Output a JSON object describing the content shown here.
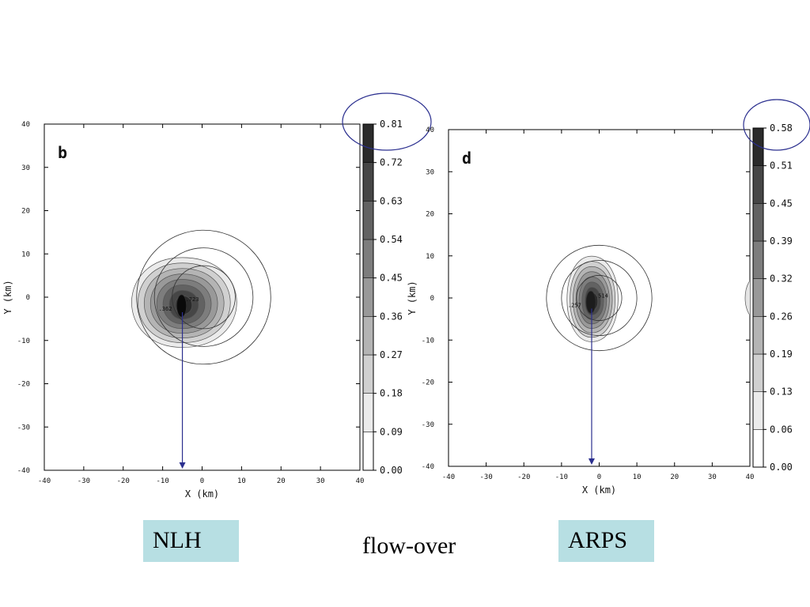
{
  "chart_data": [
    {
      "type": "contour",
      "panel_label": "b",
      "model_label": "NLH",
      "xlabel": "X (km)",
      "ylabel": "Y (km)",
      "xlim": [
        -40,
        40
      ],
      "ylim": [
        -40,
        40
      ],
      "x_ticks": [
        -40,
        -30,
        -20,
        -10,
        0,
        10,
        20,
        30,
        40
      ],
      "y_ticks": [
        -40,
        -30,
        -20,
        -10,
        0,
        10,
        20,
        30,
        40
      ],
      "colorbar_levels": [
        "0.00",
        "0.09",
        "0.18",
        "0.27",
        "0.36",
        "0.45",
        "0.54",
        "0.63",
        "0.72",
        "0.81"
      ],
      "max_level": 0.81,
      "max_location": [
        -5,
        -2
      ],
      "contour_labels": [
        ".362",
        ".723"
      ],
      "terrain_circles_center": [
        0,
        0
      ],
      "arrow_x": -5
    },
    {
      "type": "contour",
      "panel_label": "d",
      "model_label": "ARPS",
      "xlabel": "X (km)",
      "ylabel": "Y (km)",
      "xlim": [
        -40,
        40
      ],
      "ylim": [
        -40,
        40
      ],
      "x_ticks": [
        -40,
        -30,
        -20,
        -10,
        0,
        10,
        20,
        30,
        40
      ],
      "y_ticks": [
        -40,
        -30,
        -20,
        -10,
        0,
        10,
        20,
        30,
        40
      ],
      "colorbar_levels": [
        "0.00",
        "0.06",
        "0.13",
        "0.19",
        "0.26",
        "0.32",
        "0.39",
        "0.45",
        "0.51",
        "0.58"
      ],
      "max_level": 0.58,
      "max_location": [
        -2,
        -1
      ],
      "contour_labels": [
        ".257",
        ".514"
      ],
      "terrain_circles_center": [
        0,
        0
      ],
      "arrow_x": -2
    }
  ],
  "caption": "flow-over",
  "colors": {
    "label_box": "#b7dfe3",
    "annotation": "#2b2f8f"
  }
}
